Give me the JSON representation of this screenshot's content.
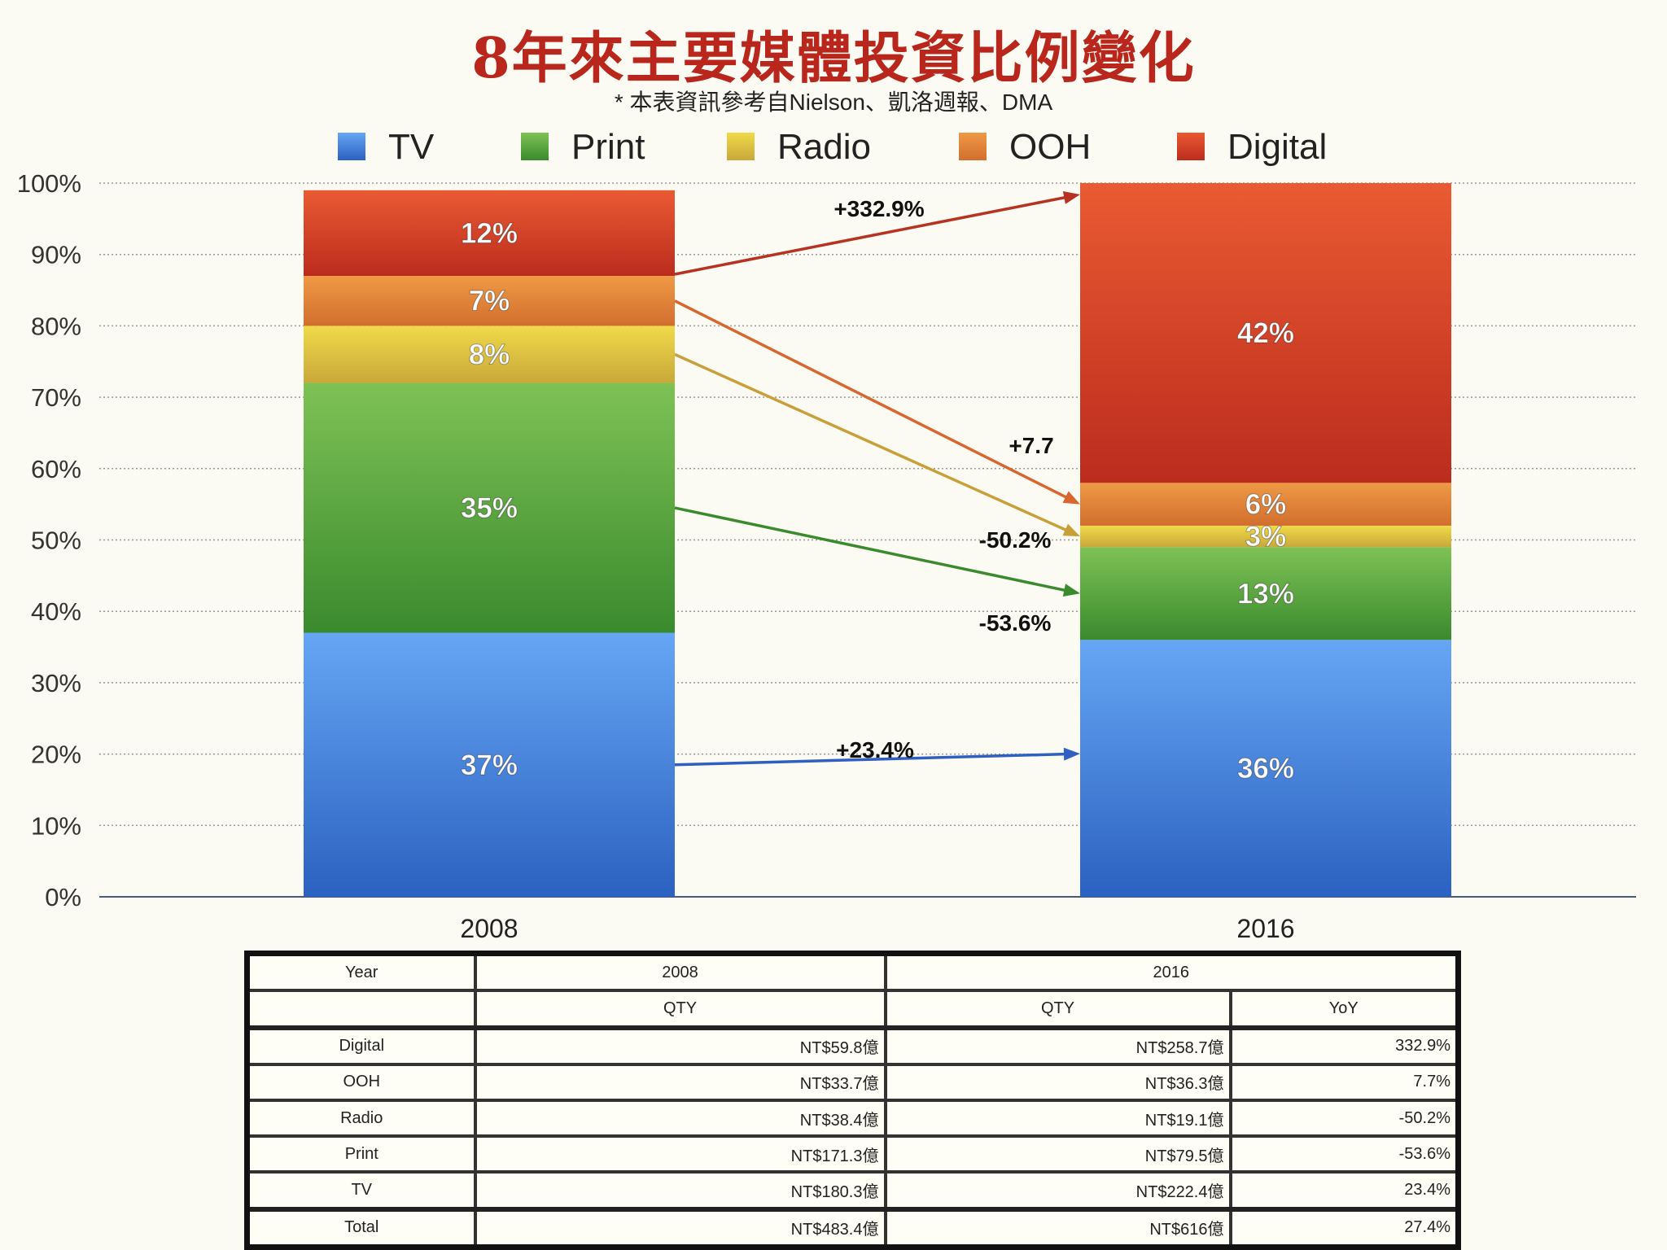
{
  "title": "8年來主要媒體投資比例變化",
  "subtitle": "* 本表資訊參考自Nielson、凱洛週報、DMA",
  "chart_data": {
    "type": "bar",
    "stacked": true,
    "categories": [
      "2008",
      "2016"
    ],
    "series": [
      {
        "name": "TV",
        "values": [
          37,
          36
        ],
        "labels": [
          "37%",
          "36%"
        ],
        "color": "#3f7ee0"
      },
      {
        "name": "Print",
        "values": [
          35,
          13
        ],
        "labels": [
          "35%",
          "13%"
        ],
        "color": "#55a83f"
      },
      {
        "name": "Radio",
        "values": [
          8,
          3
        ],
        "labels": [
          "8%",
          "3%"
        ],
        "color": "#e2c33a"
      },
      {
        "name": "OOH",
        "values": [
          7,
          6
        ],
        "labels": [
          "7%",
          "6%"
        ],
        "color": "#e0823a"
      },
      {
        "name": "Digital",
        "values": [
          12,
          42
        ],
        "labels": [
          "12%",
          "42%"
        ],
        "color": "#d4412a"
      }
    ],
    "ylim": [
      0,
      100
    ],
    "yticks": [
      "0%",
      "10%",
      "20%",
      "30%",
      "40%",
      "50%",
      "60%",
      "70%",
      "80%",
      "90%",
      "100%"
    ],
    "grid": true,
    "legend_position": "top",
    "annotations": [
      {
        "series": "Digital",
        "text": "+332.9%"
      },
      {
        "series": "OOH",
        "text": "+7.7"
      },
      {
        "series": "Radio",
        "text": "-50.2%"
      },
      {
        "series": "Print",
        "text": "-53.6%"
      },
      {
        "series": "TV",
        "text": "+23.4%"
      }
    ]
  },
  "table": {
    "header1": [
      "Year",
      "2008",
      "2016"
    ],
    "header2": [
      "",
      "QTY",
      "QTY",
      "YoY"
    ],
    "rows": [
      [
        "Digital",
        "NT$59.8億",
        "NT$258.7億",
        "332.9%"
      ],
      [
        "OOH",
        "NT$33.7億",
        "NT$36.3億",
        "7.7%"
      ],
      [
        "Radio",
        "NT$38.4億",
        "NT$19.1億",
        "-50.2%"
      ],
      [
        "Print",
        "NT$171.3億",
        "NT$79.5億",
        "-53.6%"
      ],
      [
        "TV",
        "NT$180.3億",
        "NT$222.4億",
        "23.4%"
      ]
    ],
    "total": [
      "Total",
      "NT$483.4億",
      "NT$616億",
      "27.4%"
    ]
  }
}
